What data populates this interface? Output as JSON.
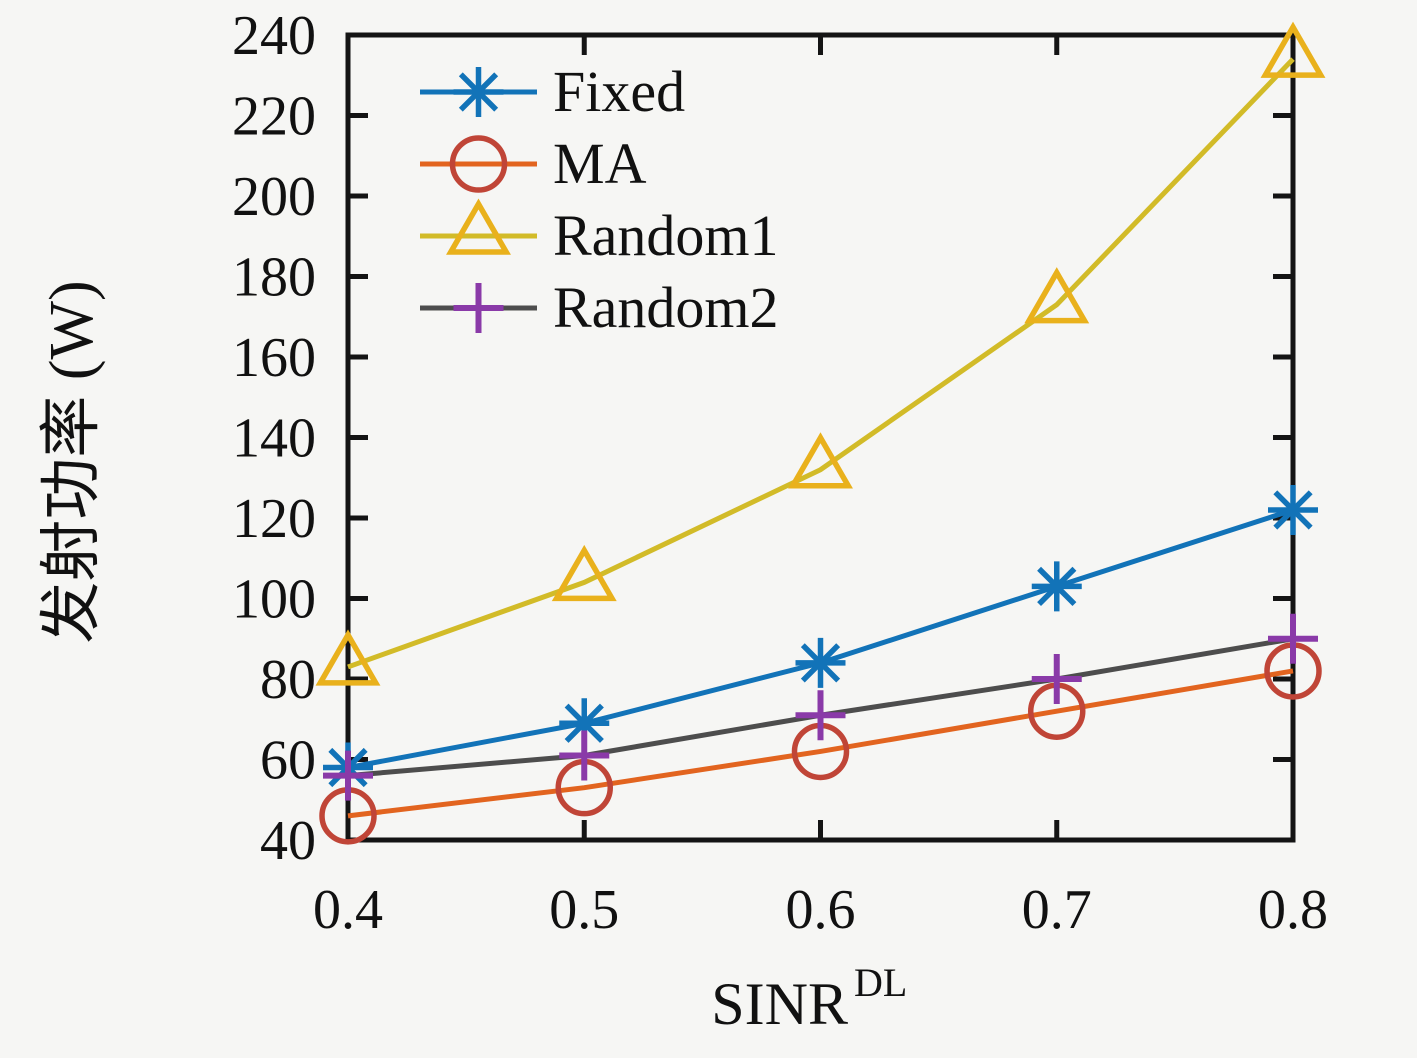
{
  "chart_data": {
    "type": "line",
    "x": [
      0.4,
      0.5,
      0.6,
      0.7,
      0.8
    ],
    "x_tick_labels": [
      "0.4",
      "0.5",
      "0.6",
      "0.7",
      "0.8"
    ],
    "y_ticks": [
      40,
      60,
      80,
      100,
      120,
      140,
      160,
      180,
      200,
      220,
      240
    ],
    "xlim": [
      0.4,
      0.8
    ],
    "ylim": [
      40,
      240
    ],
    "grid": false,
    "title": "",
    "xlabel": "SINR",
    "xlabel_superscript": "DL",
    "ylabel": "发射功率 (W)",
    "legend_position": "top-left-inside",
    "background_color": "#f6f6f4",
    "axis_color": "#141414",
    "series": [
      {
        "name": "Fixed",
        "marker": "asterisk",
        "line_color": "#1273b8",
        "marker_color": "#1273b8",
        "values": [
          58,
          69,
          84,
          103,
          122
        ]
      },
      {
        "name": "MA",
        "marker": "circle",
        "line_color": "#e2641f",
        "marker_color": "#c04537",
        "values": [
          46,
          53,
          62,
          72,
          82
        ]
      },
      {
        "name": "Random1",
        "marker": "triangle",
        "line_color": "#d2bb28",
        "marker_color": "#e9b11c",
        "values": [
          83,
          104,
          132,
          173,
          234
        ]
      },
      {
        "name": "Random2",
        "marker": "plus",
        "line_color": "#4d4d4d",
        "marker_color": "#8a3aa8",
        "values": [
          56,
          61,
          71,
          80,
          90
        ]
      }
    ]
  }
}
